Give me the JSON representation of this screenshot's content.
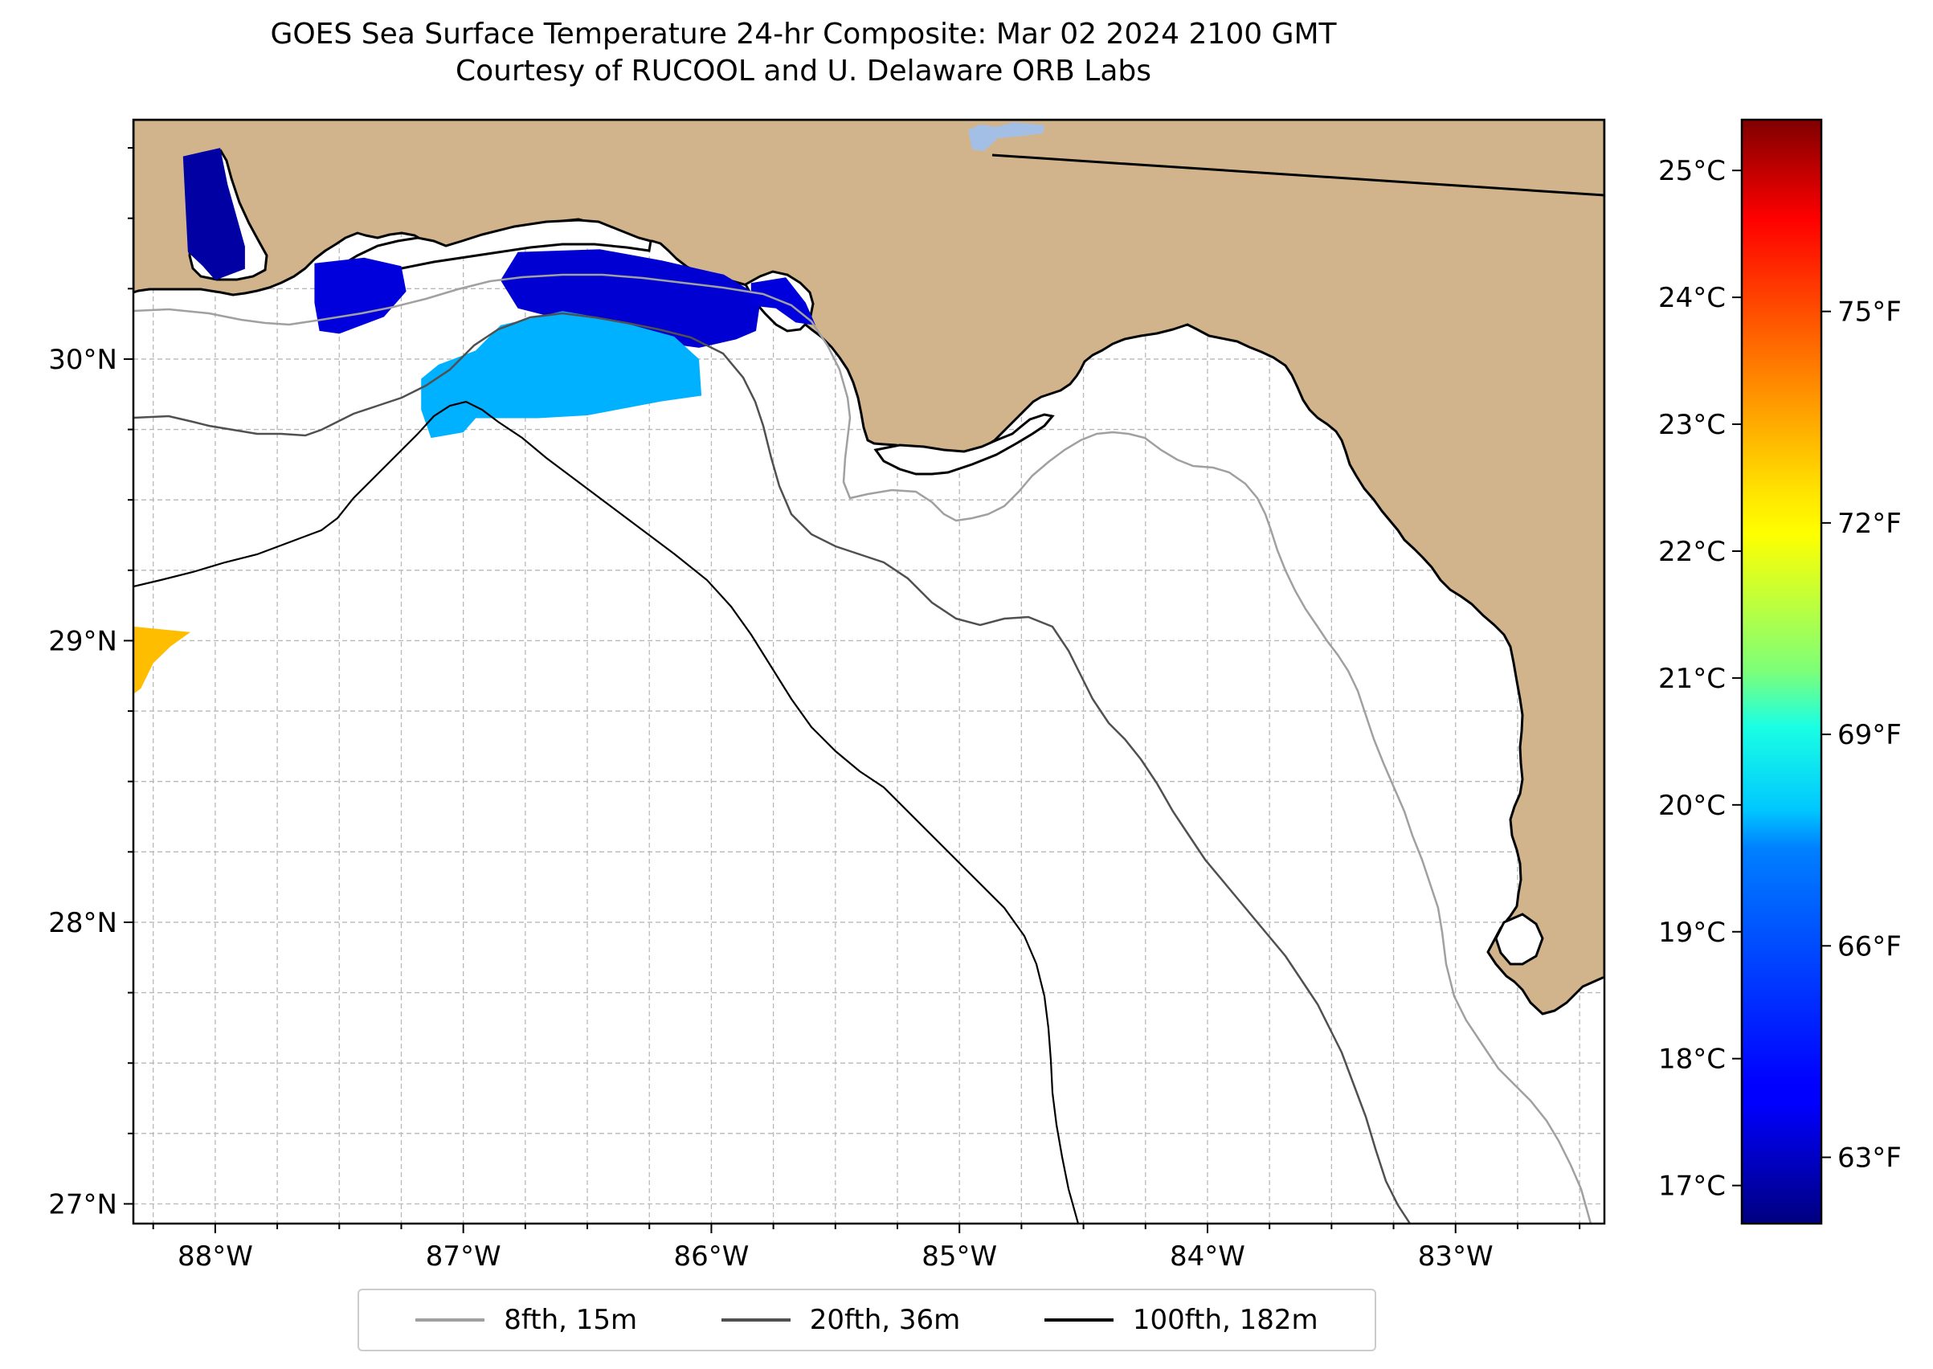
{
  "title": {
    "line1": "GOES Sea Surface Temperature 24-hr Composite: Mar 02 2024 2100 GMT",
    "line2": "Courtesy of RUCOOL and U. Delaware ORB Labs"
  },
  "map": {
    "lon_range": [
      -88.33,
      -82.4
    ],
    "lat_range": [
      26.93,
      30.85
    ],
    "lon_ticks": [
      {
        "value": -88,
        "label": "88°W"
      },
      {
        "value": -87,
        "label": "87°W"
      },
      {
        "value": -86,
        "label": "86°W"
      },
      {
        "value": -85,
        "label": "85°W"
      },
      {
        "value": -84,
        "label": "84°W"
      },
      {
        "value": -83,
        "label": "83°W"
      }
    ],
    "lat_ticks": [
      {
        "value": 27,
        "label": "27°N"
      },
      {
        "value": 28,
        "label": "28°N"
      },
      {
        "value": 29,
        "label": "29°N"
      },
      {
        "value": 30,
        "label": "30°N"
      }
    ],
    "grid": true,
    "colors": {
      "land": "#d2b48c",
      "ocean": "#ffffff",
      "coastline": "#000000",
      "grid": "#b0b0b0",
      "state_border": "#000000",
      "inland_water": "#a4bfe6"
    }
  },
  "colorbar": {
    "colormap": "jet",
    "vmin_c": 16.7,
    "vmax_c": 25.4,
    "celsius_ticks": [
      {
        "value": 17,
        "label": "17°C"
      },
      {
        "value": 18,
        "label": "18°C"
      },
      {
        "value": 19,
        "label": "19°C"
      },
      {
        "value": 20,
        "label": "20°C"
      },
      {
        "value": 21,
        "label": "21°C"
      },
      {
        "value": 22,
        "label": "22°C"
      },
      {
        "value": 23,
        "label": "23°C"
      },
      {
        "value": 24,
        "label": "24°C"
      },
      {
        "value": 25,
        "label": "25°C"
      }
    ],
    "fahrenheit_ticks": [
      {
        "value": 63,
        "label": "63°F"
      },
      {
        "value": 66,
        "label": "66°F"
      },
      {
        "value": 69,
        "label": "69°F"
      },
      {
        "value": 72,
        "label": "72°F"
      },
      {
        "value": 75,
        "label": "75°F"
      }
    ]
  },
  "legend": {
    "placement": "bottom-center",
    "items": [
      {
        "label": "8fth, 15m",
        "color": "#a0a0a0"
      },
      {
        "label": "20fth, 36m",
        "color": "#505050"
      },
      {
        "label": "100fth, 182m",
        "color": "#000000"
      }
    ]
  },
  "sst_patches": [
    {
      "name": "mobile-bay",
      "temp_c": 17.0,
      "outline": [
        [
          -88.13,
          30.72
        ],
        [
          -87.98,
          30.75
        ],
        [
          -87.95,
          30.62
        ],
        [
          -87.88,
          30.4
        ],
        [
          -87.88,
          30.32
        ],
        [
          -88.0,
          30.28
        ],
        [
          -88.05,
          30.33
        ],
        [
          -88.11,
          30.38
        ],
        [
          -88.12,
          30.55
        ]
      ]
    },
    {
      "name": "perdido-pensacola",
      "temp_c": 17.5,
      "outline": [
        [
          -87.6,
          30.34
        ],
        [
          -87.4,
          30.36
        ],
        [
          -87.25,
          30.33
        ],
        [
          -87.23,
          30.24
        ],
        [
          -87.32,
          30.15
        ],
        [
          -87.5,
          30.09
        ],
        [
          -87.58,
          30.1
        ],
        [
          -87.6,
          30.2
        ]
      ]
    },
    {
      "name": "destin-inner",
      "temp_c": 17.4,
      "outline": [
        [
          -86.78,
          30.38
        ],
        [
          -86.45,
          30.39
        ],
        [
          -86.2,
          30.35
        ],
        [
          -85.95,
          30.3
        ],
        [
          -85.8,
          30.22
        ],
        [
          -85.82,
          30.1
        ],
        [
          -85.9,
          30.07
        ],
        [
          -86.05,
          30.04
        ],
        [
          -86.3,
          30.07
        ],
        [
          -86.6,
          30.14
        ],
        [
          -86.78,
          30.18
        ],
        [
          -86.85,
          30.28
        ]
      ]
    },
    {
      "name": "st-andrews-bay",
      "temp_c": 17.5,
      "outline": [
        [
          -85.84,
          30.27
        ],
        [
          -85.7,
          30.29
        ],
        [
          -85.62,
          30.2
        ],
        [
          -85.58,
          30.12
        ],
        [
          -85.66,
          30.13
        ],
        [
          -85.74,
          30.18
        ],
        [
          -85.84,
          30.19
        ]
      ]
    },
    {
      "name": "destin-shelf",
      "temp_c": 19.3,
      "outline": [
        [
          -86.85,
          30.12
        ],
        [
          -86.6,
          30.17
        ],
        [
          -86.4,
          30.14
        ],
        [
          -86.15,
          30.08
        ],
        [
          -86.05,
          30.0
        ],
        [
          -86.04,
          29.87
        ],
        [
          -86.2,
          29.85
        ],
        [
          -86.5,
          29.8
        ],
        [
          -86.7,
          29.79
        ],
        [
          -86.95,
          29.79
        ],
        [
          -87.0,
          29.74
        ],
        [
          -87.13,
          29.72
        ],
        [
          -87.17,
          29.82
        ],
        [
          -87.17,
          29.93
        ],
        [
          -87.1,
          29.98
        ],
        [
          -86.95,
          30.03
        ]
      ]
    },
    {
      "name": "west-edge-warm",
      "temp_c": 22.7,
      "outline": [
        [
          -88.33,
          29.05
        ],
        [
          -88.1,
          29.03
        ],
        [
          -88.18,
          28.98
        ],
        [
          -88.25,
          28.92
        ],
        [
          -88.3,
          28.83
        ],
        [
          -88.33,
          28.81
        ]
      ]
    }
  ]
}
